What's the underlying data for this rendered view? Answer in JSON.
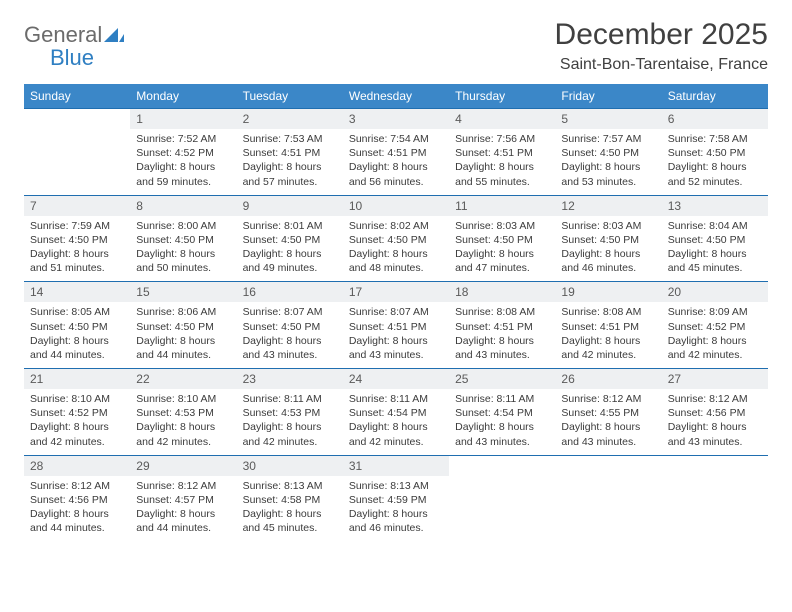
{
  "logo": {
    "general": "General",
    "blue": "Blue"
  },
  "title": {
    "month": "December 2025",
    "location": "Saint-Bon-Tarentaise, France"
  },
  "colors": {
    "header_bg": "#3b87c8",
    "header_border": "#1f6eb0",
    "daynum_bg": "#eef0f2",
    "text": "#333333",
    "logo_gray": "#6b6b6b",
    "logo_blue": "#2f7fc2"
  },
  "weekdays": [
    "Sunday",
    "Monday",
    "Tuesday",
    "Wednesday",
    "Thursday",
    "Friday",
    "Saturday"
  ],
  "weeks": [
    {
      "nums": [
        "",
        "1",
        "2",
        "3",
        "4",
        "5",
        "6"
      ],
      "cells": [
        "",
        "Sunrise: 7:52 AM\nSunset: 4:52 PM\nDaylight: 8 hours and 59 minutes.",
        "Sunrise: 7:53 AM\nSunset: 4:51 PM\nDaylight: 8 hours and 57 minutes.",
        "Sunrise: 7:54 AM\nSunset: 4:51 PM\nDaylight: 8 hours and 56 minutes.",
        "Sunrise: 7:56 AM\nSunset: 4:51 PM\nDaylight: 8 hours and 55 minutes.",
        "Sunrise: 7:57 AM\nSunset: 4:50 PM\nDaylight: 8 hours and 53 minutes.",
        "Sunrise: 7:58 AM\nSunset: 4:50 PM\nDaylight: 8 hours and 52 minutes."
      ]
    },
    {
      "nums": [
        "7",
        "8",
        "9",
        "10",
        "11",
        "12",
        "13"
      ],
      "cells": [
        "Sunrise: 7:59 AM\nSunset: 4:50 PM\nDaylight: 8 hours and 51 minutes.",
        "Sunrise: 8:00 AM\nSunset: 4:50 PM\nDaylight: 8 hours and 50 minutes.",
        "Sunrise: 8:01 AM\nSunset: 4:50 PM\nDaylight: 8 hours and 49 minutes.",
        "Sunrise: 8:02 AM\nSunset: 4:50 PM\nDaylight: 8 hours and 48 minutes.",
        "Sunrise: 8:03 AM\nSunset: 4:50 PM\nDaylight: 8 hours and 47 minutes.",
        "Sunrise: 8:03 AM\nSunset: 4:50 PM\nDaylight: 8 hours and 46 minutes.",
        "Sunrise: 8:04 AM\nSunset: 4:50 PM\nDaylight: 8 hours and 45 minutes."
      ]
    },
    {
      "nums": [
        "14",
        "15",
        "16",
        "17",
        "18",
        "19",
        "20"
      ],
      "cells": [
        "Sunrise: 8:05 AM\nSunset: 4:50 PM\nDaylight: 8 hours and 44 minutes.",
        "Sunrise: 8:06 AM\nSunset: 4:50 PM\nDaylight: 8 hours and 44 minutes.",
        "Sunrise: 8:07 AM\nSunset: 4:50 PM\nDaylight: 8 hours and 43 minutes.",
        "Sunrise: 8:07 AM\nSunset: 4:51 PM\nDaylight: 8 hours and 43 minutes.",
        "Sunrise: 8:08 AM\nSunset: 4:51 PM\nDaylight: 8 hours and 43 minutes.",
        "Sunrise: 8:08 AM\nSunset: 4:51 PM\nDaylight: 8 hours and 42 minutes.",
        "Sunrise: 8:09 AM\nSunset: 4:52 PM\nDaylight: 8 hours and 42 minutes."
      ]
    },
    {
      "nums": [
        "21",
        "22",
        "23",
        "24",
        "25",
        "26",
        "27"
      ],
      "cells": [
        "Sunrise: 8:10 AM\nSunset: 4:52 PM\nDaylight: 8 hours and 42 minutes.",
        "Sunrise: 8:10 AM\nSunset: 4:53 PM\nDaylight: 8 hours and 42 minutes.",
        "Sunrise: 8:11 AM\nSunset: 4:53 PM\nDaylight: 8 hours and 42 minutes.",
        "Sunrise: 8:11 AM\nSunset: 4:54 PM\nDaylight: 8 hours and 42 minutes.",
        "Sunrise: 8:11 AM\nSunset: 4:54 PM\nDaylight: 8 hours and 43 minutes.",
        "Sunrise: 8:12 AM\nSunset: 4:55 PM\nDaylight: 8 hours and 43 minutes.",
        "Sunrise: 8:12 AM\nSunset: 4:56 PM\nDaylight: 8 hours and 43 minutes."
      ]
    },
    {
      "nums": [
        "28",
        "29",
        "30",
        "31",
        "",
        "",
        ""
      ],
      "cells": [
        "Sunrise: 8:12 AM\nSunset: 4:56 PM\nDaylight: 8 hours and 44 minutes.",
        "Sunrise: 8:12 AM\nSunset: 4:57 PM\nDaylight: 8 hours and 44 minutes.",
        "Sunrise: 8:13 AM\nSunset: 4:58 PM\nDaylight: 8 hours and 45 minutes.",
        "Sunrise: 8:13 AM\nSunset: 4:59 PM\nDaylight: 8 hours and 46 minutes.",
        "",
        "",
        ""
      ]
    }
  ]
}
